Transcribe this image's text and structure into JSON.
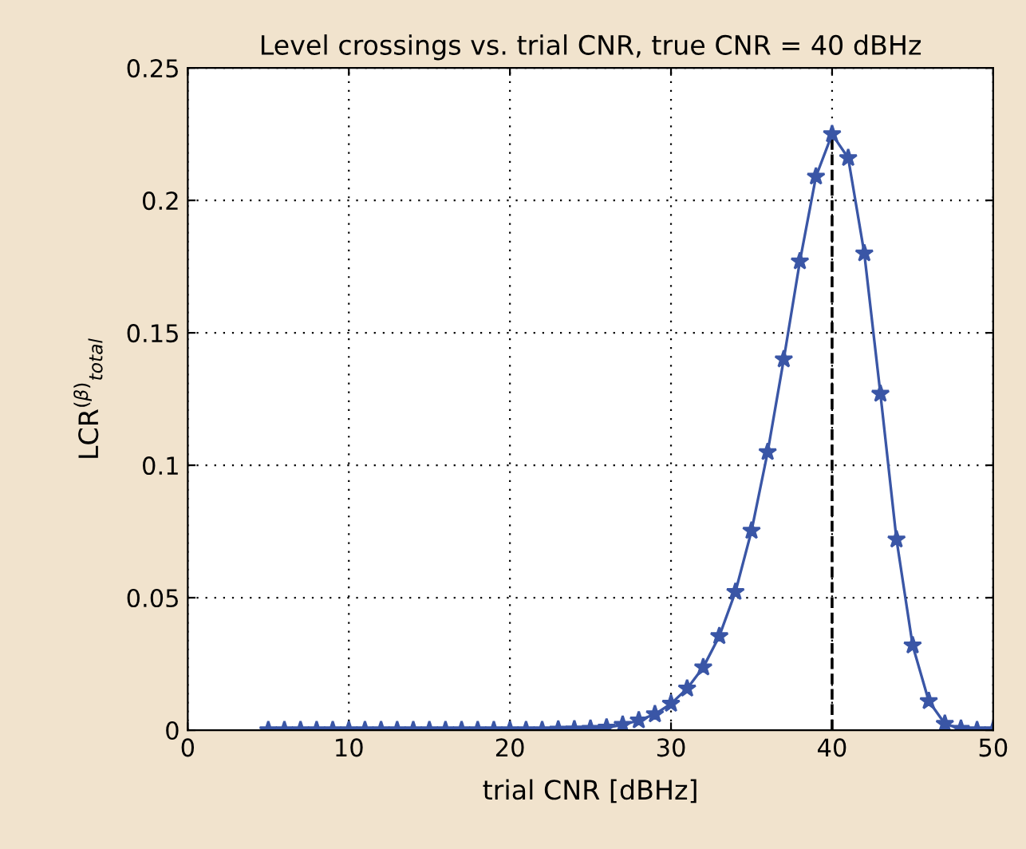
{
  "chart_data": {
    "type": "line",
    "title": "Level crossings vs. trial CNR, true CNR = 40 dBHz",
    "xlabel": "trial CNR [dBHz]",
    "ylabel": "LCR$^{(β)}$$_{total}$",
    "x": [
      5,
      6,
      7,
      8,
      9,
      10,
      11,
      12,
      13,
      14,
      15,
      16,
      17,
      18,
      19,
      20,
      21,
      22,
      23,
      24,
      25,
      26,
      27,
      28,
      29,
      30,
      31,
      32,
      33,
      34,
      35,
      36,
      37,
      38,
      39,
      40,
      41,
      42,
      43,
      44,
      45,
      46,
      47,
      48,
      49,
      50
    ],
    "series": [
      {
        "color": "#3a56a6",
        "values": [
          0,
          0,
          0,
          0,
          0,
          0,
          0,
          0,
          0,
          0,
          0,
          0,
          0,
          0,
          0,
          0,
          0,
          0,
          0.0002,
          0.0003,
          0.0005,
          0.001,
          0.002,
          0.0037,
          0.006,
          0.01,
          0.0157,
          0.0237,
          0.0355,
          0.0522,
          0.0753,
          0.105,
          0.14,
          0.177,
          0.209,
          0.225,
          0.216,
          0.18,
          0.127,
          0.072,
          0.032,
          0.011,
          0.0024,
          0.0005,
          0,
          0
        ]
      }
    ],
    "marker": "star",
    "line_style": "solid",
    "grid": true,
    "xlim": [
      0,
      50
    ],
    "xticks": [
      0,
      10,
      20,
      30,
      40,
      50
    ],
    "ylim": [
      0,
      0.25
    ],
    "yticks": [
      0,
      0.05,
      0.1,
      0.15,
      0.2,
      0.25
    ],
    "ref_lines": [
      {
        "axis": "x",
        "value": 40,
        "color": "#000000",
        "line_style": "dashed"
      }
    ]
  }
}
